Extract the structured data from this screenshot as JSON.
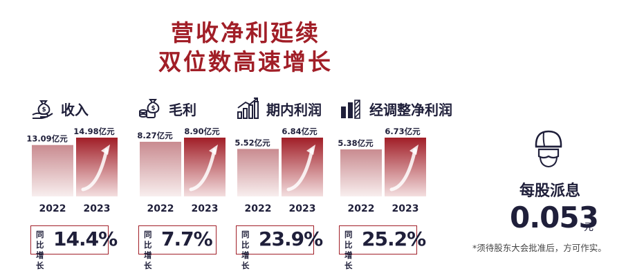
{
  "title": {
    "line1": "营收净利延续",
    "line2": "双位数高速增长"
  },
  "colors": {
    "accent": "#a11e27",
    "text": "#1f1f3a"
  },
  "chart_data": [
    {
      "type": "bar",
      "label": "收入",
      "icon": "money-bag-hand-icon",
      "categories": [
        "2022",
        "2023"
      ],
      "values": [
        13.09,
        14.98
      ],
      "value_labels": [
        "13.09亿元",
        "14.98亿元"
      ],
      "unit": "亿元",
      "growth_label": "同比增长",
      "growth": "14.4%"
    },
    {
      "type": "bar",
      "label": "毛利",
      "icon": "money-coins-icon",
      "categories": [
        "2022",
        "2023"
      ],
      "values": [
        8.27,
        8.9
      ],
      "value_labels": [
        "8.27亿元",
        "8.90亿元"
      ],
      "unit": "亿元",
      "growth_label": "同比增长",
      "growth": "7.7%"
    },
    {
      "type": "bar",
      "label": "期内利润",
      "icon": "bar-chart-up-icon",
      "categories": [
        "2022",
        "2023"
      ],
      "values": [
        5.52,
        6.84
      ],
      "value_labels": [
        "5.52亿元",
        "6.84亿元"
      ],
      "unit": "亿元",
      "growth_label": "同比增长",
      "growth": "23.9%"
    },
    {
      "type": "bar",
      "label": "经调整净利润",
      "icon": "bar-chart-stripes-icon",
      "categories": [
        "2022",
        "2023"
      ],
      "values": [
        5.38,
        6.73
      ],
      "value_labels": [
        "5.38亿元",
        "6.73亿元"
      ],
      "unit": "亿元",
      "growth_label": "同比增长",
      "growth": "25.2%"
    }
  ],
  "dividend": {
    "label": "每股派息",
    "value": "0.053",
    "unit": "元",
    "note": "*须待股东大会批准后，方可作实。",
    "icon": "helmet-icon"
  }
}
